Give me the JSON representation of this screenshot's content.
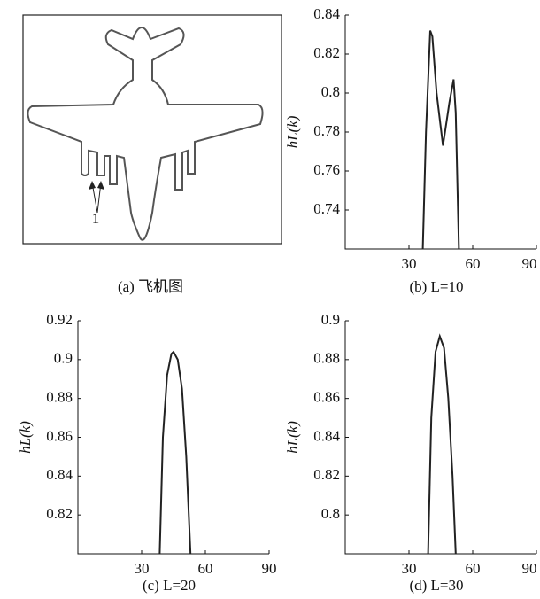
{
  "image_panel": {
    "caption": "(a) 飞机图",
    "annotation": "1"
  },
  "chart_data": [
    {
      "type": "line",
      "caption": "(b) L=10",
      "y_label": "hL(k)",
      "color": "#222222",
      "x": [
        36.5,
        38,
        40,
        41,
        43,
        46,
        49,
        51,
        52,
        53.5
      ],
      "values": [
        0.72,
        0.78,
        0.832,
        0.829,
        0.8,
        0.773,
        0.795,
        0.807,
        0.79,
        0.72
      ],
      "xlim": [
        0,
        90
      ],
      "xticks": [
        30,
        60,
        90
      ],
      "ylim": [
        0.72,
        0.84
      ],
      "yticks": [
        0.74,
        0.76,
        0.78,
        0.8,
        0.82,
        0.84
      ]
    },
    {
      "type": "line",
      "caption": "(c) L=20",
      "y_label": "hL(k)",
      "color": "#222222",
      "x": [
        38.5,
        40,
        42,
        44,
        45,
        47,
        49,
        51,
        53
      ],
      "values": [
        0.8,
        0.86,
        0.892,
        0.903,
        0.904,
        0.9,
        0.885,
        0.85,
        0.8
      ],
      "xlim": [
        0,
        90
      ],
      "xticks": [
        30,
        60,
        90
      ],
      "ylim": [
        0.8,
        0.92
      ],
      "yticks": [
        0.82,
        0.84,
        0.86,
        0.88,
        0.9,
        0.92
      ]
    },
    {
      "type": "line",
      "caption": "(d) L=30",
      "y_label": "hL(k)",
      "color": "#222222",
      "x": [
        39,
        40.5,
        42.5,
        44.5,
        46.5,
        48.5,
        50.5,
        52
      ],
      "values": [
        0.78,
        0.85,
        0.884,
        0.892,
        0.886,
        0.86,
        0.82,
        0.78
      ],
      "xlim": [
        0,
        90
      ],
      "xticks": [
        30,
        60,
        90
      ],
      "ylim": [
        0.78,
        0.9
      ],
      "yticks": [
        0.8,
        0.82,
        0.84,
        0.86,
        0.88,
        0.9
      ]
    }
  ]
}
